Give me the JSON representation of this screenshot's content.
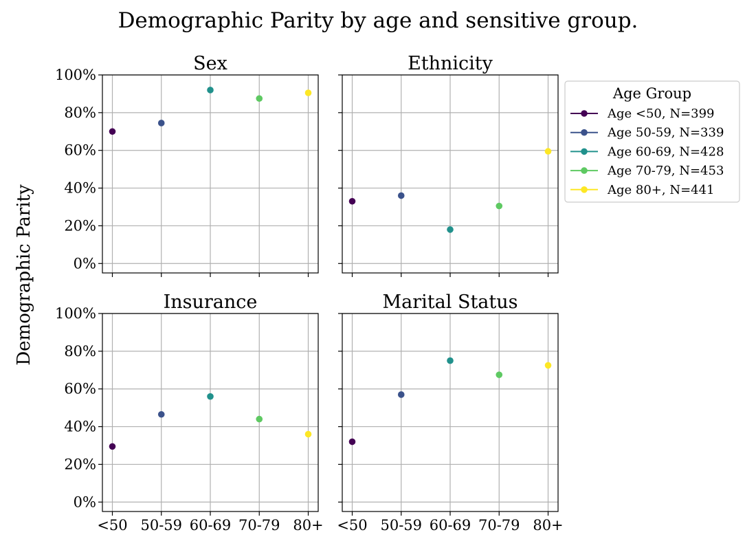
{
  "chart_data": {
    "type": "scatter",
    "title": "Demographic Parity by age and sensitive group.",
    "ylabel": "Demographic Parity",
    "categories": [
      "<50",
      "50-59",
      "60-69",
      "70-79",
      "80+"
    ],
    "ylim": [
      -0.05,
      1.0
    ],
    "yticks": [
      0,
      0.2,
      0.4,
      0.6,
      0.8,
      1.0
    ],
    "ytick_labels": [
      "0%",
      "20%",
      "40%",
      "60%",
      "80%",
      "100%"
    ],
    "grid": true,
    "legend": {
      "title": "Age Group",
      "placement": "upper right, outside plots",
      "entries": [
        {
          "label": "Age <50, N=399",
          "color": "#440154"
        },
        {
          "label": "Age 50-59, N=339",
          "color": "#3b528b"
        },
        {
          "label": "Age 60-69, N=428",
          "color": "#21918c"
        },
        {
          "label": "Age 70-79, N=453",
          "color": "#5ec962"
        },
        {
          "label": "Age 80+, N=441",
          "color": "#fde725"
        }
      ]
    },
    "panels": [
      {
        "title": "Sex",
        "values": [
          0.7,
          0.745,
          0.92,
          0.875,
          0.905
        ]
      },
      {
        "title": "Ethnicity",
        "values": [
          0.33,
          0.36,
          0.18,
          0.305,
          0.595
        ]
      },
      {
        "title": "Insurance",
        "values": [
          0.295,
          0.465,
          0.56,
          0.44,
          0.36
        ]
      },
      {
        "title": "Marital Status",
        "values": [
          0.32,
          0.57,
          0.75,
          0.675,
          0.725
        ]
      }
    ]
  }
}
